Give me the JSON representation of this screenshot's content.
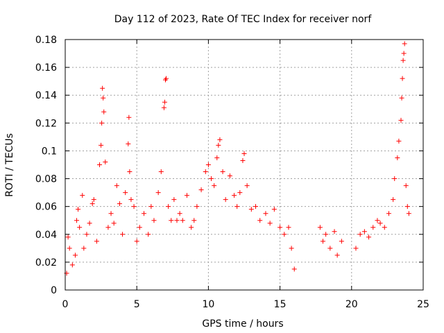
{
  "chart_data": {
    "type": "scatter",
    "title": "Day 112 of 2023, Rate Of TEC Index for receiver norf",
    "xlabel": "GPS time / hours",
    "ylabel": "ROTI / TECUs",
    "xlim": [
      0,
      25
    ],
    "ylim": [
      0,
      0.18
    ],
    "xticks": [
      "0",
      "5",
      "10",
      "15",
      "20",
      "25"
    ],
    "yticks": [
      "0",
      "0.02",
      "0.04",
      "0.06",
      "0.08",
      "0.1",
      "0.12",
      "0.14",
      "0.16",
      "0.18"
    ],
    "grid": true,
    "marker": "+",
    "color": "#ff0000",
    "series": [
      {
        "points": [
          [
            0.1,
            0.012
          ],
          [
            0.2,
            0.038
          ],
          [
            0.3,
            0.03
          ],
          [
            0.5,
            0.018
          ],
          [
            0.7,
            0.025
          ],
          [
            0.8,
            0.05
          ],
          [
            0.9,
            0.058
          ],
          [
            1.0,
            0.045
          ],
          [
            1.2,
            0.068
          ],
          [
            1.3,
            0.03
          ],
          [
            1.5,
            0.04
          ],
          [
            1.7,
            0.048
          ],
          [
            1.9,
            0.062
          ],
          [
            2.0,
            0.065
          ],
          [
            2.2,
            0.035
          ],
          [
            2.4,
            0.09
          ],
          [
            2.5,
            0.104
          ],
          [
            2.55,
            0.12
          ],
          [
            2.6,
            0.145
          ],
          [
            2.65,
            0.138
          ],
          [
            2.7,
            0.128
          ],
          [
            2.8,
            0.092
          ],
          [
            3.0,
            0.045
          ],
          [
            3.2,
            0.055
          ],
          [
            3.4,
            0.048
          ],
          [
            3.6,
            0.075
          ],
          [
            3.8,
            0.062
          ],
          [
            4.0,
            0.04
          ],
          [
            4.2,
            0.07
          ],
          [
            4.4,
            0.105
          ],
          [
            4.45,
            0.124
          ],
          [
            4.5,
            0.085
          ],
          [
            4.6,
            0.065
          ],
          [
            4.8,
            0.06
          ],
          [
            5.0,
            0.035
          ],
          [
            5.2,
            0.045
          ],
          [
            5.5,
            0.055
          ],
          [
            5.8,
            0.04
          ],
          [
            6.0,
            0.06
          ],
          [
            6.2,
            0.05
          ],
          [
            6.5,
            0.07
          ],
          [
            6.7,
            0.085
          ],
          [
            6.9,
            0.131
          ],
          [
            6.95,
            0.135
          ],
          [
            7.0,
            0.151
          ],
          [
            7.05,
            0.152
          ],
          [
            7.2,
            0.06
          ],
          [
            7.4,
            0.05
          ],
          [
            7.6,
            0.065
          ],
          [
            7.8,
            0.05
          ],
          [
            8.0,
            0.055
          ],
          [
            8.2,
            0.05
          ],
          [
            8.5,
            0.068
          ],
          [
            8.8,
            0.045
          ],
          [
            9.0,
            0.05
          ],
          [
            9.2,
            0.06
          ],
          [
            9.5,
            0.072
          ],
          [
            9.8,
            0.085
          ],
          [
            10.0,
            0.09
          ],
          [
            10.2,
            0.08
          ],
          [
            10.4,
            0.075
          ],
          [
            10.6,
            0.095
          ],
          [
            10.7,
            0.104
          ],
          [
            10.8,
            0.108
          ],
          [
            11.0,
            0.085
          ],
          [
            11.2,
            0.065
          ],
          [
            11.5,
            0.082
          ],
          [
            11.8,
            0.068
          ],
          [
            12.0,
            0.06
          ],
          [
            12.2,
            0.07
          ],
          [
            12.4,
            0.093
          ],
          [
            12.5,
            0.098
          ],
          [
            12.7,
            0.075
          ],
          [
            13.0,
            0.058
          ],
          [
            13.3,
            0.06
          ],
          [
            13.6,
            0.05
          ],
          [
            14.0,
            0.055
          ],
          [
            14.3,
            0.048
          ],
          [
            14.6,
            0.058
          ],
          [
            15.0,
            0.045
          ],
          [
            15.3,
            0.04
          ],
          [
            15.6,
            0.045
          ],
          [
            15.8,
            0.03
          ],
          [
            16.0,
            0.015
          ],
          [
            17.8,
            0.045
          ],
          [
            18.0,
            0.035
          ],
          [
            18.2,
            0.04
          ],
          [
            18.5,
            0.03
          ],
          [
            18.8,
            0.042
          ],
          [
            19.0,
            0.025
          ],
          [
            19.3,
            0.035
          ],
          [
            20.3,
            0.03
          ],
          [
            20.6,
            0.04
          ],
          [
            20.9,
            0.042
          ],
          [
            21.2,
            0.038
          ],
          [
            21.5,
            0.045
          ],
          [
            21.8,
            0.05
          ],
          [
            22.0,
            0.048
          ],
          [
            22.3,
            0.045
          ],
          [
            22.6,
            0.055
          ],
          [
            22.9,
            0.065
          ],
          [
            23.0,
            0.08
          ],
          [
            23.2,
            0.095
          ],
          [
            23.3,
            0.107
          ],
          [
            23.45,
            0.122
          ],
          [
            23.5,
            0.138
          ],
          [
            23.55,
            0.152
          ],
          [
            23.6,
            0.165
          ],
          [
            23.65,
            0.17
          ],
          [
            23.7,
            0.177
          ],
          [
            23.8,
            0.075
          ],
          [
            23.9,
            0.06
          ],
          [
            24.0,
            0.055
          ]
        ]
      }
    ]
  }
}
